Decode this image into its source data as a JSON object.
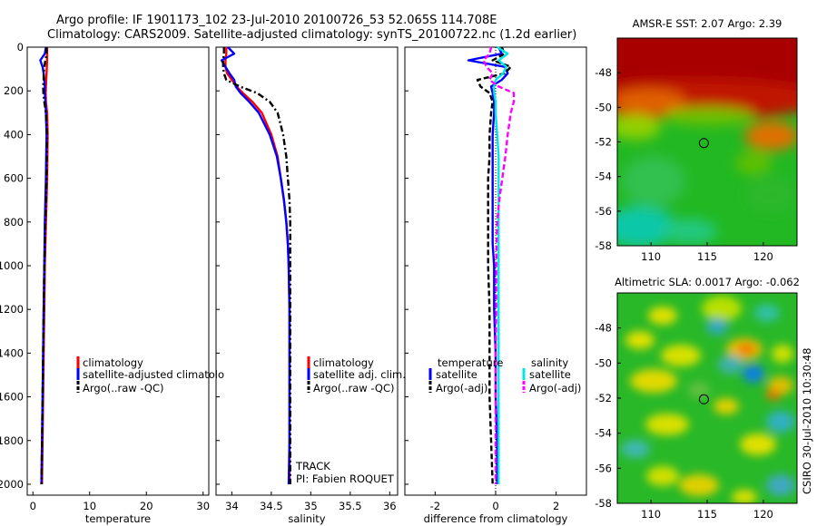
{
  "title": {
    "line1": "Argo profile: IF 1901173_102 23-Jul-2010 20100726_53 52.065S 114.708E",
    "line2": "Climatology: CARS2009. Satellite-adjusted climatology: synTS_20100722.nc (1.2d earlier)"
  },
  "colors": {
    "red": "#ff0000",
    "blue": "#0000ff",
    "black": "#000000",
    "cyan": "#00e5e5",
    "magenta": "#ff00ff"
  },
  "chart_data": [
    {
      "type": "line",
      "xlabel": "temperature",
      "xlim": [
        -1,
        31
      ],
      "ylim": [
        2050,
        0
      ],
      "xticks": [
        "0",
        "10",
        "20",
        "30"
      ],
      "yticks": [
        "0",
        "200",
        "400",
        "600",
        "800",
        "1000",
        "1200",
        "1400",
        "1600",
        "1800",
        "2000"
      ],
      "depth": [
        0,
        30,
        60,
        90,
        120,
        150,
        180,
        210,
        250,
        300,
        400,
        500,
        600,
        700,
        800,
        900,
        1000,
        1200,
        1400,
        1600,
        1800,
        2000
      ],
      "series": [
        {
          "name": "climatology",
          "color": "red",
          "dash": "solid",
          "values": [
            2.5,
            2.5,
            2.5,
            2.45,
            2.4,
            2.35,
            2.3,
            2.25,
            2.3,
            2.5,
            2.6,
            2.55,
            2.5,
            2.4,
            2.3,
            2.2,
            2.1,
            2.0,
            1.9,
            1.8,
            1.7,
            1.6
          ]
        },
        {
          "name": "satellite-adjusted climatology",
          "color": "blue",
          "dash": "solid",
          "values": [
            2.3,
            2.1,
            1.3,
            1.7,
            1.9,
            2.0,
            2.1,
            2.1,
            2.2,
            2.3,
            2.4,
            2.35,
            2.3,
            2.2,
            2.1,
            2.05,
            2.0,
            1.9,
            1.8,
            1.7,
            1.6,
            1.5
          ]
        },
        {
          "name": "Argo(..raw -QC)",
          "color": "black",
          "dash": "dashdot",
          "values": [
            2.4,
            2.4,
            2.2,
            2.0,
            1.9,
            1.9,
            1.8,
            1.85,
            2.0,
            2.3,
            2.5,
            2.45,
            2.4,
            2.3,
            2.2,
            2.1,
            2.0,
            1.9,
            1.8,
            1.7,
            1.6,
            1.5
          ]
        }
      ],
      "legend": [
        "climatology",
        "satellite-adjusted climatolo",
        "Argo(..raw -QC)"
      ]
    },
    {
      "type": "line",
      "xlabel": "salinity",
      "xlim": [
        33.8,
        36.1
      ],
      "ylim": [
        2050,
        0
      ],
      "xticks": [
        "34",
        "34.5",
        "35",
        "35.5",
        "36"
      ],
      "depth": [
        0,
        30,
        60,
        90,
        120,
        150,
        180,
        210,
        250,
        300,
        400,
        500,
        600,
        700,
        800,
        900,
        1000,
        1200,
        1400,
        1600,
        1800,
        2000
      ],
      "series": [
        {
          "name": "climatology",
          "color": "red",
          "dash": "solid",
          "values": [
            33.93,
            33.93,
            33.92,
            33.92,
            33.94,
            34.0,
            34.06,
            34.14,
            34.26,
            34.38,
            34.5,
            34.58,
            34.62,
            34.66,
            34.69,
            34.71,
            34.72,
            34.73,
            34.73,
            34.73,
            34.73,
            34.73
          ]
        },
        {
          "name": "satellite adj. clim.",
          "color": "blue",
          "dash": "solid",
          "values": [
            33.95,
            34.03,
            33.87,
            33.92,
            33.97,
            34.03,
            34.05,
            34.11,
            34.22,
            34.34,
            34.48,
            34.57,
            34.62,
            34.66,
            34.69,
            34.71,
            34.72,
            34.73,
            34.73,
            34.73,
            34.73,
            34.72
          ]
        },
        {
          "name": "Argo(..raw -QC)",
          "color": "black",
          "dash": "dashdot",
          "values": [
            33.9,
            33.9,
            33.89,
            33.89,
            33.9,
            33.93,
            34.1,
            34.32,
            34.48,
            34.58,
            34.65,
            34.69,
            34.71,
            34.73,
            34.74,
            34.74,
            34.74,
            34.74,
            34.74,
            34.74,
            34.74,
            34.74
          ]
        }
      ],
      "legend": [
        "climatology",
        "satellite adj. clim.",
        "Argo(..raw -QC)"
      ],
      "annotations": [
        "TRACK",
        "PI: Fabien ROQUET"
      ]
    },
    {
      "type": "line",
      "xlabel": "difference from climatology",
      "xlim": [
        -3,
        3
      ],
      "ylim": [
        2050,
        0
      ],
      "xticks": [
        "-2",
        "0",
        "2"
      ],
      "depth": [
        0,
        30,
        60,
        90,
        120,
        150,
        180,
        210,
        250,
        300,
        400,
        500,
        600,
        700,
        800,
        900,
        1000,
        1200,
        1400,
        1600,
        1800,
        2000
      ],
      "series": [
        {
          "name": "temperature satellite",
          "color": "blue",
          "dash": "solid",
          "values": [
            0.1,
            0.2,
            -0.9,
            0.3,
            0.4,
            0.2,
            -0.15,
            -0.1,
            -0.05,
            -0.05,
            -0.1,
            -0.1,
            -0.1,
            -0.1,
            -0.1,
            -0.1,
            -0.05,
            -0.05,
            0.0,
            0.0,
            0.05,
            0.05
          ]
        },
        {
          "name": "temperature Argo(-adj)",
          "color": "black",
          "dash": "dash",
          "values": [
            0.2,
            0.3,
            -0.1,
            0.5,
            0.3,
            -0.6,
            -0.5,
            -0.2,
            -0.1,
            -0.15,
            -0.2,
            -0.2,
            -0.25,
            -0.25,
            -0.25,
            -0.25,
            -0.25,
            -0.2,
            -0.2,
            -0.2,
            -0.15,
            -0.1
          ]
        },
        {
          "name": "salinity satellite",
          "color": "cyan",
          "dash": "solid",
          "values": [
            0.05,
            0.4,
            0.1,
            0.35,
            0.25,
            0.0,
            -0.05,
            -0.05,
            0.0,
            0.0,
            0.05,
            0.1,
            0.1,
            0.1,
            0.1,
            0.1,
            0.1,
            0.1,
            0.1,
            0.1,
            0.1,
            0.1
          ]
        },
        {
          "name": "salinity Argo(-adj)",
          "color": "magenta",
          "dash": "dash",
          "values": [
            -0.15,
            -0.2,
            -0.4,
            -0.3,
            -0.1,
            -0.2,
            0.1,
            0.6,
            0.6,
            0.5,
            0.4,
            0.32,
            0.22,
            0.12,
            0.05,
            0.03,
            0.02,
            0.02,
            0.0,
            0.0,
            0.0,
            0.0
          ]
        }
      ],
      "legend": {
        "temperature_header": "temperature",
        "salinity_header": "salinity",
        "items": [
          "satellite",
          "Argo(-adj)",
          "satellite",
          "Argo(-adj)"
        ]
      }
    },
    {
      "type": "heatmap",
      "title": "AMSR-E SST: 2.07 Argo: 2.39",
      "xlim": [
        107,
        123
      ],
      "ylim": [
        -58,
        -46
      ],
      "xticks": [
        "110",
        "115",
        "120"
      ],
      "yticks": [
        "-48",
        "-50",
        "-52",
        "-54",
        "-56",
        "-58"
      ],
      "marker": {
        "lon": 114.708,
        "lat": -52.065
      }
    },
    {
      "type": "heatmap",
      "title": "Altimetric SLA: 0.0017 Argo: -0.062",
      "xlim": [
        107,
        123
      ],
      "ylim": [
        -58,
        -46
      ],
      "xticks": [
        "110",
        "115",
        "120"
      ],
      "yticks": [
        "-48",
        "-50",
        "-52",
        "-54",
        "-56",
        "-58"
      ],
      "marker": {
        "lon": 114.708,
        "lat": -52.065
      }
    }
  ],
  "credit": "CSIRO 30-Jul-2010 10:30:48"
}
